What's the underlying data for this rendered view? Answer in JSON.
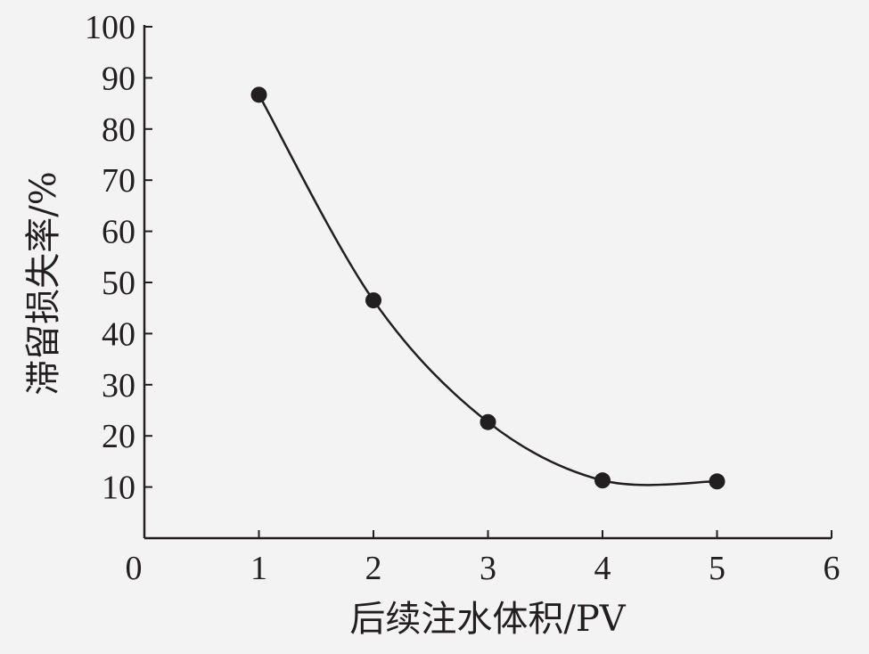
{
  "chart_data": {
    "type": "line",
    "title": "",
    "xlabel": "后续注水体积/PV",
    "ylabel": "滞留损失率/%",
    "xlim": [
      0,
      6
    ],
    "ylim": [
      0,
      100
    ],
    "x_ticks": [
      0,
      1,
      2,
      3,
      4,
      5,
      6
    ],
    "y_ticks": [
      0,
      10,
      20,
      30,
      40,
      50,
      60,
      70,
      80,
      90,
      100
    ],
    "grid": false,
    "smooth": true,
    "series": [
      {
        "x": [
          1,
          2,
          3,
          4,
          5
        ],
        "values": [
          86.7,
          46.5,
          22.7,
          11.3,
          11.1
        ]
      }
    ],
    "colors": {
      "line": "#231f20",
      "marker": "#231f20",
      "axis": "#231f20",
      "background": "#f3f3f3"
    }
  }
}
